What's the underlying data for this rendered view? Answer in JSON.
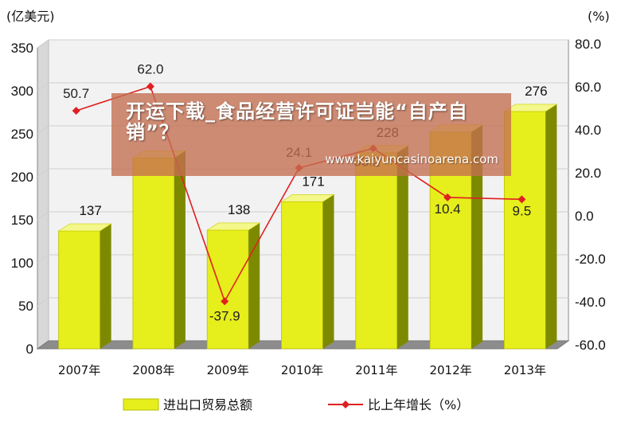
{
  "chart_data": {
    "type": "bar",
    "left_unit": "(亿美元)",
    "right_unit": "(%)",
    "categories": [
      "2007年",
      "2008年",
      "2009年",
      "2010年",
      "2011年",
      "2012年",
      "2013年"
    ],
    "series": [
      {
        "name": "进出口贸易总额",
        "type": "bar",
        "axis": "left",
        "values": [
          137,
          222,
          138,
          171,
          228,
          252,
          276
        ]
      },
      {
        "name": "比上年增长（%）",
        "type": "line",
        "axis": "right",
        "values": [
          50.7,
          62.0,
          -37.9,
          24.1,
          33.2,
          10.4,
          9.5
        ]
      }
    ],
    "bar_labels": [
      "137",
      "",
      "138",
      "171",
      "228",
      "",
      "276"
    ],
    "line_labels": [
      "50.7",
      "62.0",
      "-37.9",
      "24.1",
      "33.2",
      "10.4",
      "9.5"
    ],
    "y_left": {
      "min": 0,
      "max": 350,
      "ticks": [
        "0",
        "50",
        "100",
        "150",
        "200",
        "250",
        "300",
        "350"
      ]
    },
    "y_right": {
      "min": -60,
      "max": 80,
      "ticks": [
        "-60.0",
        "-40.0",
        "-20.0",
        "0.0",
        "20.0",
        "40.0",
        "60.0",
        "80.0"
      ]
    },
    "grid": true,
    "legend_position": "bottom",
    "colors": {
      "bar": "#e6ee1c",
      "bar_side": "#7d8a00",
      "line": "#e02020",
      "grid": "#cfcfcf"
    }
  },
  "overlay": {
    "title": "开运下载_食品经营许可证岂能“自产自销”？",
    "url": "www.kaiyuncasinoarena.com"
  }
}
